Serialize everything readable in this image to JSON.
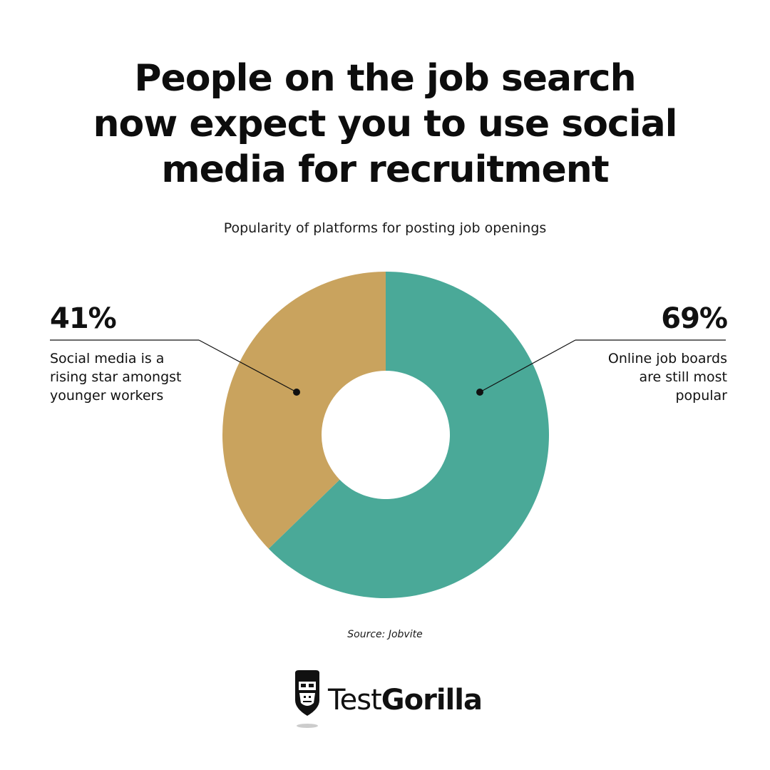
{
  "title_lines": [
    "People on the job search",
    "now expect you to use social",
    "media for recruitment"
  ],
  "chart_data": {
    "type": "pie",
    "subtitle": "Popularity of platforms for posting job openings",
    "slices": [
      {
        "value": 69,
        "label": "69%",
        "description_lines": [
          "Online job boards",
          "are still most",
          "popular"
        ],
        "color": "#4aa998"
      },
      {
        "value": 41,
        "label": "41%",
        "description_lines": [
          "Social media is a",
          "rising star amongst",
          "younger workers"
        ],
        "color": "#c9a35e"
      }
    ],
    "donut": true
  },
  "source": "Source: Jobvite",
  "brand": {
    "name_light": "Test",
    "name_bold": "Gorilla",
    "logo_icon": "gorilla-head-icon"
  }
}
